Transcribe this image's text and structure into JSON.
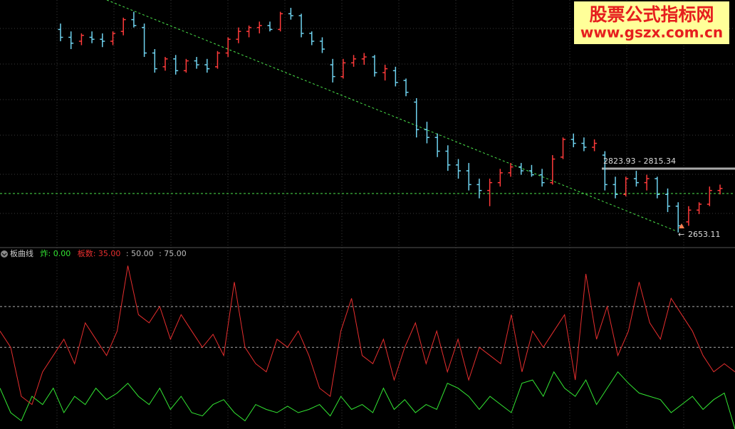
{
  "chart_data": [
    {
      "type": "ohlc",
      "up_color": "#ff3a3a",
      "down_color": "#6fd3f0",
      "ylim": [
        2620,
        3245
      ],
      "open": [
        3170,
        3150,
        3140,
        3150,
        3145,
        3140,
        3165,
        3195,
        3175,
        3110,
        3075,
        3095,
        3065,
        3090,
        3080,
        3075,
        3110,
        3145,
        3165,
        3175,
        3180,
        3170,
        3210,
        3205,
        3160,
        3140,
        3080,
        3050,
        3085,
        3095,
        3100,
        3060,
        3065,
        3040,
        2985,
        2915,
        2895,
        2860,
        2825,
        2810,
        2775,
        2760,
        2780,
        2805,
        2820,
        2810,
        2800,
        2780,
        2845,
        2890,
        2880,
        2870,
        2850,
        2775,
        2750,
        2790,
        2780,
        2790,
        2750,
        2720,
        2680,
        2710,
        2725,
        2760
      ],
      "high": [
        3185,
        3165,
        3160,
        3165,
        3160,
        3165,
        3200,
        3215,
        3185,
        3120,
        3100,
        3105,
        3095,
        3100,
        3095,
        3115,
        3150,
        3175,
        3180,
        3190,
        3190,
        3215,
        3225,
        3210,
        3165,
        3150,
        3095,
        3095,
        3105,
        3110,
        3105,
        3080,
        3075,
        3045,
        2995,
        2935,
        2905,
        2875,
        2840,
        2830,
        2790,
        2790,
        2815,
        2830,
        2830,
        2825,
        2815,
        2850,
        2895,
        2905,
        2895,
        2890,
        2860,
        2795,
        2795,
        2810,
        2800,
        2795,
        2765,
        2730,
        2720,
        2730,
        2770,
        2775
      ],
      "low": [
        3140,
        3120,
        3130,
        3135,
        3125,
        3130,
        3155,
        3175,
        3100,
        3060,
        3065,
        3055,
        3060,
        3070,
        3060,
        3070,
        3100,
        3135,
        3150,
        3160,
        3165,
        3165,
        3195,
        3150,
        3130,
        3110,
        3035,
        3045,
        3075,
        3080,
        3050,
        3040,
        3025,
        3000,
        2895,
        2880,
        2845,
        2810,
        2790,
        2760,
        2740,
        2720,
        2770,
        2795,
        2800,
        2795,
        2770,
        2775,
        2840,
        2870,
        2860,
        2860,
        2760,
        2740,
        2745,
        2770,
        2760,
        2740,
        2705,
        2653.11,
        2670,
        2700,
        2720,
        2750
      ],
      "close": [
        3150,
        3135,
        3155,
        3145,
        3140,
        3160,
        3195,
        3180,
        3110,
        3070,
        3095,
        3065,
        3090,
        3080,
        3070,
        3110,
        3145,
        3165,
        3175,
        3180,
        3170,
        3210,
        3205,
        3160,
        3140,
        3120,
        3050,
        3085,
        3095,
        3100,
        3060,
        3070,
        3035,
        3010,
        2915,
        2895,
        2860,
        2825,
        2810,
        2775,
        2760,
        2780,
        2805,
        2820,
        2810,
        2800,
        2780,
        2840,
        2890,
        2880,
        2870,
        2880,
        2775,
        2750,
        2790,
        2780,
        2790,
        2750,
        2720,
        2670,
        2710,
        2725,
        2760,
        2765
      ],
      "annotations": [
        {
          "text": "2823.93 - 2815.34"
        },
        {
          "text": "2653.11"
        }
      ]
    },
    {
      "type": "line",
      "title": "板曲线",
      "ylim": [
        0,
        105
      ],
      "reference_lines": [
        {
          "value": 50,
          "label": ": 50.00"
        },
        {
          "value": 75,
          "label": ": 75.00"
        }
      ],
      "series": [
        {
          "name": "炸",
          "readout": ": 0.00",
          "color": "#33e633",
          "values": [
            25,
            10,
            5,
            20,
            15,
            25,
            10,
            20,
            15,
            25,
            18,
            22,
            28,
            20,
            15,
            25,
            12,
            20,
            10,
            8,
            15,
            18,
            10,
            5,
            15,
            12,
            10,
            14,
            10,
            12,
            15,
            8,
            20,
            12,
            15,
            10,
            25,
            12,
            18,
            10,
            15,
            12,
            28,
            25,
            20,
            12,
            20,
            15,
            10,
            28,
            30,
            20,
            35,
            25,
            20,
            30,
            15,
            25,
            35,
            28,
            22,
            20,
            18,
            10,
            15,
            20,
            12,
            18,
            22,
            0
          ]
        },
        {
          "name": "板数",
          "readout": ": 35.00",
          "color": "#e62e2e",
          "values": [
            60,
            50,
            20,
            15,
            35,
            45,
            55,
            40,
            65,
            55,
            45,
            60,
            100,
            70,
            65,
            75,
            55,
            70,
            60,
            50,
            58,
            45,
            90,
            50,
            40,
            35,
            55,
            50,
            60,
            45,
            25,
            20,
            60,
            80,
            45,
            40,
            55,
            30,
            50,
            65,
            40,
            60,
            35,
            55,
            30,
            50,
            45,
            40,
            70,
            35,
            60,
            50,
            60,
            70,
            30,
            95,
            55,
            75,
            45,
            60,
            90,
            65,
            55,
            80,
            70,
            60,
            45,
            35,
            40,
            35
          ]
        }
      ]
    }
  ],
  "watermark": {
    "title": "股票公式指标网",
    "url": "www.gszx.com.cn"
  }
}
